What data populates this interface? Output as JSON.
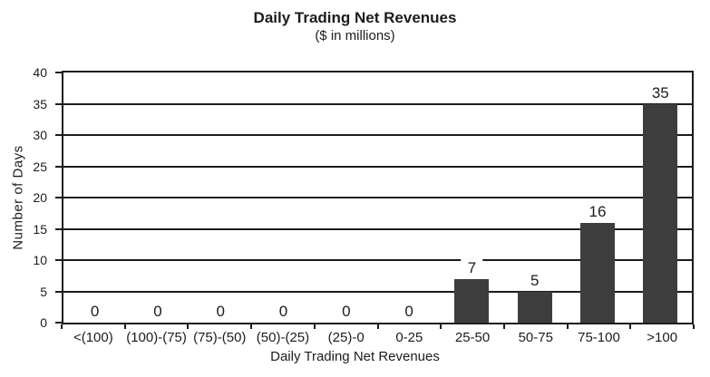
{
  "chart_data": {
    "type": "bar",
    "title": "Daily Trading Net Revenues",
    "subtitle": "($ in millions)",
    "xlabel": "Daily Trading Net Revenues",
    "ylabel": "Number of Days",
    "categories": [
      "<(100)",
      "(100)-(75)",
      "(75)-(50)",
      "(50)-(25)",
      "(25)-0",
      "0-25",
      "25-50",
      "50-75",
      "75-100",
      ">100"
    ],
    "values": [
      0,
      0,
      0,
      0,
      0,
      0,
      7,
      5,
      16,
      35
    ],
    "ylim": [
      0,
      40
    ],
    "yticks": [
      0,
      5,
      10,
      15,
      20,
      25,
      30,
      35,
      40
    ],
    "ytick_step": 5,
    "grid": "horizontal",
    "legend": "none",
    "value_labels_shown": true,
    "bar_color": "#3d3d3d",
    "line_color": "#1c1c1c",
    "text_color": "#1c1c1c",
    "background": "#ffffff"
  }
}
